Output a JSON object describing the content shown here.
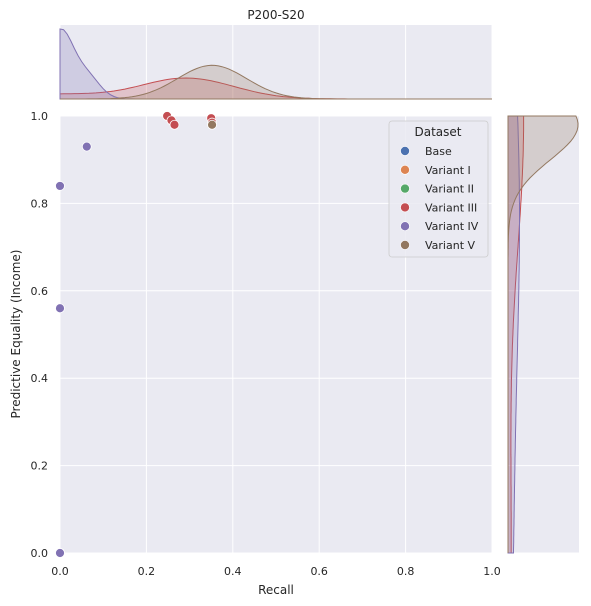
{
  "chart_data": {
    "type": "scatter",
    "title": "P200-S20",
    "xlabel": "Recall",
    "ylabel": "Predictive Equality (Income)",
    "xlim": [
      0,
      1
    ],
    "ylim": [
      0,
      1
    ],
    "xticks": [
      "0.0",
      "0.2",
      "0.4",
      "0.6",
      "0.8",
      "1.0"
    ],
    "yticks": [
      "0.0",
      "0.2",
      "0.4",
      "0.6",
      "0.8",
      "1.0"
    ],
    "grid": true,
    "legend": {
      "title": "Dataset",
      "position": "top-right"
    },
    "series": [
      {
        "name": "Base",
        "color": "#4c72b0",
        "points": [
          [
            0.0,
            0.0
          ]
        ]
      },
      {
        "name": "Variant I",
        "color": "#dd8452",
        "points": [
          [
            0.0,
            0.0
          ]
        ]
      },
      {
        "name": "Variant II",
        "color": "#55a868",
        "points": [
          [
            0.0,
            0.0
          ]
        ]
      },
      {
        "name": "Variant III",
        "color": "#c44e52",
        "points": [
          [
            0.248,
            1.0
          ],
          [
            0.258,
            0.99
          ],
          [
            0.265,
            0.98
          ],
          [
            0.35,
            0.995
          ],
          [
            0.352,
            0.985
          ],
          [
            0.0,
            0.0
          ]
        ]
      },
      {
        "name": "Variant IV",
        "color": "#8172b3",
        "points": [
          [
            0.062,
            0.93
          ],
          [
            0.0,
            0.84
          ],
          [
            0.0,
            0.56
          ],
          [
            0.0,
            0.0
          ]
        ]
      },
      {
        "name": "Variant V",
        "color": "#937860",
        "points": [
          [
            0.352,
            0.98
          ]
        ]
      }
    ],
    "marginals": true
  }
}
